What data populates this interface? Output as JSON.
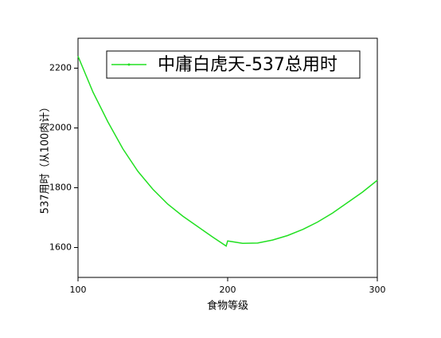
{
  "chart_data": {
    "type": "line",
    "x_label": "食物等级",
    "y_label": "537用时（从100肉计）",
    "x": [
      100,
      110,
      120,
      130,
      140,
      150,
      160,
      170,
      180,
      190,
      199,
      200,
      210,
      220,
      230,
      240,
      250,
      260,
      270,
      280,
      290,
      300
    ],
    "series": [
      {
        "name": "中庸白虎天-537总用时",
        "color": "#22e022",
        "values": [
          2240,
          2120,
          2020,
          1930,
          1855,
          1795,
          1745,
          1705,
          1670,
          1635,
          1605,
          1622,
          1614,
          1615,
          1625,
          1640,
          1660,
          1685,
          1715,
          1750,
          1785,
          1825
        ]
      }
    ],
    "xlim": [
      100,
      300
    ],
    "ylim": [
      1500,
      2300
    ],
    "xticks": [
      100,
      200,
      300
    ],
    "yticks": [
      1600,
      1800,
      2000,
      2200
    ],
    "legend": "top-right"
  }
}
